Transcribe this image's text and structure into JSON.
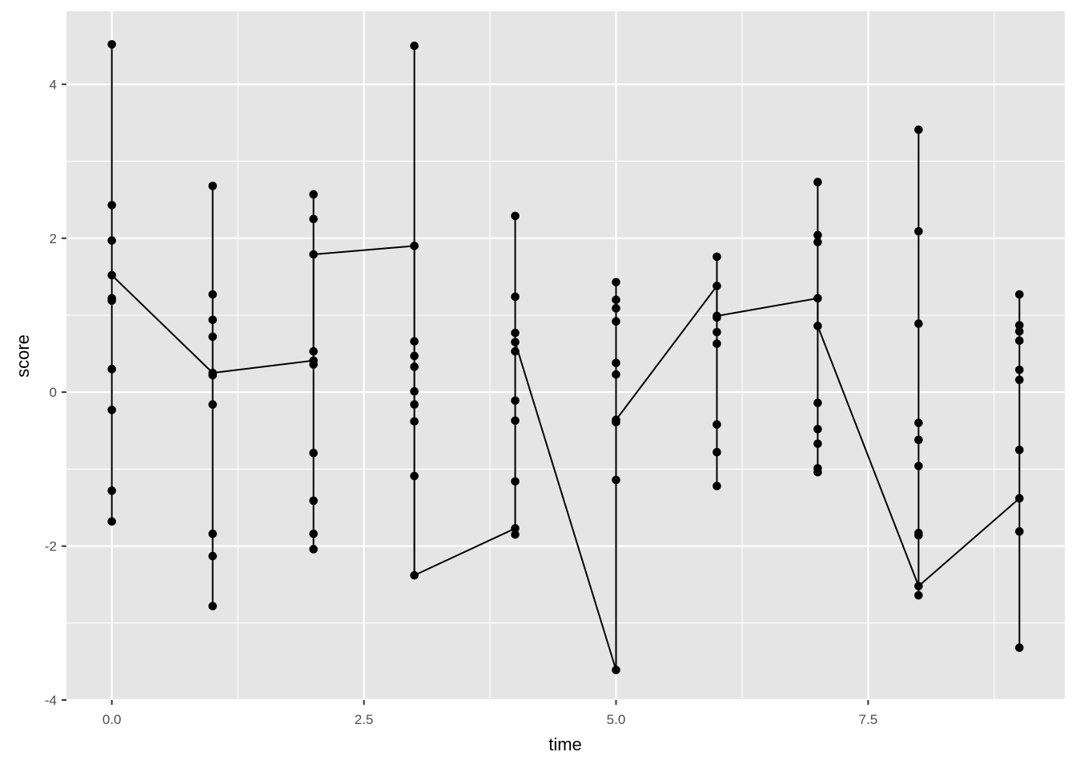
{
  "chart_data": {
    "type": "scatter",
    "title": "",
    "xlabel": "time",
    "ylabel": "score",
    "xlim": [
      -0.45,
      9.45
    ],
    "ylim": [
      -4.0,
      4.95
    ],
    "x_ticks": [
      0.0,
      2.5,
      5.0,
      7.5
    ],
    "x_tick_labels": [
      "0.0",
      "2.5",
      "5.0",
      "7.5"
    ],
    "y_ticks": [
      -4,
      -2,
      0,
      2,
      4
    ],
    "y_tick_labels": [
      "-4",
      "-2",
      "0",
      "2",
      "4"
    ],
    "grid": true,
    "panel_color": "#e5e5e5",
    "grid_color": "#ffffff",
    "point_color": "#000000",
    "groups": [
      {
        "x": 0,
        "values": [
          4.52,
          2.43,
          1.97,
          1.52,
          1.22,
          1.19,
          0.3,
          -0.23,
          -1.28,
          -1.68
        ]
      },
      {
        "x": 1,
        "values": [
          2.68,
          1.27,
          0.94,
          0.72,
          0.25,
          0.22,
          -0.16,
          -1.84,
          -2.13,
          -2.78
        ]
      },
      {
        "x": 2,
        "values": [
          2.57,
          2.25,
          1.79,
          0.53,
          0.41,
          0.36,
          -0.79,
          -1.41,
          -1.84,
          -2.04
        ]
      },
      {
        "x": 3,
        "values": [
          4.5,
          1.9,
          0.66,
          0.47,
          0.33,
          0.01,
          -0.16,
          -0.38,
          -1.09,
          -2.38
        ]
      },
      {
        "x": 4,
        "values": [
          2.29,
          1.24,
          0.77,
          0.65,
          0.53,
          -0.11,
          -0.37,
          -1.16,
          -1.77,
          -1.85
        ]
      },
      {
        "x": 5,
        "values": [
          1.43,
          1.2,
          1.09,
          0.92,
          0.38,
          0.23,
          -0.36,
          -0.39,
          -1.14,
          -3.61
        ]
      },
      {
        "x": 6,
        "values": [
          1.76,
          1.38,
          0.99,
          0.97,
          0.78,
          0.63,
          -0.42,
          -0.78,
          -1.22
        ]
      },
      {
        "x": 7,
        "values": [
          2.73,
          2.04,
          1.95,
          1.22,
          0.86,
          -0.14,
          -0.48,
          -0.67,
          -0.99,
          -1.04
        ]
      },
      {
        "x": 8,
        "values": [
          3.41,
          2.09,
          0.89,
          -0.4,
          -0.62,
          -0.96,
          -1.83,
          -1.86,
          -2.52,
          -2.64
        ]
      },
      {
        "x": 9,
        "values": [
          1.27,
          0.87,
          0.79,
          0.67,
          0.29,
          0.16,
          -0.75,
          -1.38,
          -1.81,
          -3.32
        ]
      }
    ],
    "line": {
      "x": [
        0,
        1,
        2,
        2,
        3,
        3,
        4,
        4,
        5,
        5,
        6,
        6,
        7,
        7,
        8,
        8,
        9
      ],
      "y": [
        1.52,
        0.25,
        0.41,
        1.79,
        1.9,
        -2.38,
        -1.77,
        0.65,
        -3.61,
        -0.36,
        1.38,
        0.99,
        1.22,
        0.86,
        -2.52,
        -2.52,
        -1.38
      ]
    }
  }
}
